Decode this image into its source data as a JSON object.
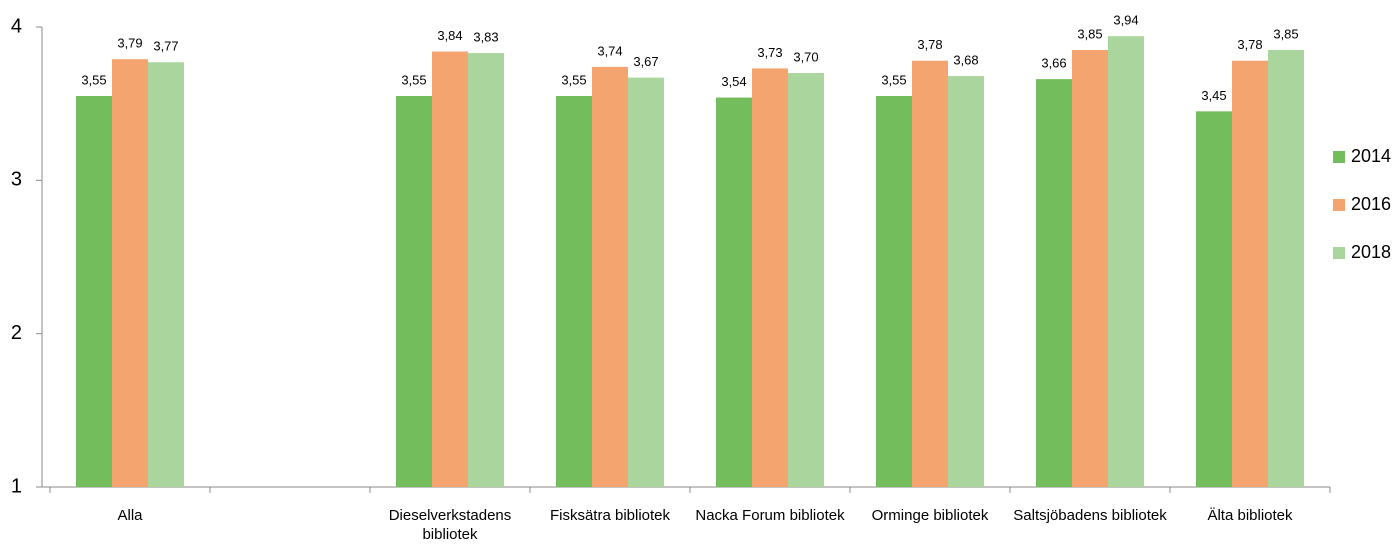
{
  "chart_data": {
    "type": "bar",
    "categories": [
      "Alla",
      null,
      "Dieselverkstadens bibliotek",
      "Fisksätra bibliotek",
      "Nacka Forum bibliotek",
      "Orminge bibliotek",
      "Saltsjöbadens bibliotek",
      "Älta bibliotek"
    ],
    "series": [
      {
        "name": "2014",
        "color": "#74bd5c",
        "values": [
          3.55,
          null,
          3.55,
          3.55,
          3.54,
          3.55,
          3.66,
          3.45
        ],
        "value_labels": [
          "3,55",
          null,
          "3,55",
          "3,55",
          "3,54",
          "3,55",
          "3,66",
          "3,45"
        ]
      },
      {
        "name": "2016",
        "color": "#f4a46e",
        "values": [
          3.79,
          null,
          3.84,
          3.74,
          3.73,
          3.78,
          3.85,
          3.78
        ],
        "value_labels": [
          "3,79",
          null,
          "3,84",
          "3,74",
          "3,73",
          "3,78",
          "3,85",
          "3,78"
        ]
      },
      {
        "name": "2018",
        "color": "#aad59c",
        "values": [
          3.77,
          null,
          3.83,
          3.67,
          3.7,
          3.68,
          3.94,
          3.85
        ],
        "value_labels": [
          "3,77",
          null,
          "3,83",
          "3,67",
          "3,70",
          "3,68",
          "3,94",
          "3,85"
        ]
      }
    ],
    "ylim": [
      1,
      4
    ],
    "yticks": [
      1,
      2,
      3,
      4
    ],
    "grid": false,
    "legend": "right"
  }
}
